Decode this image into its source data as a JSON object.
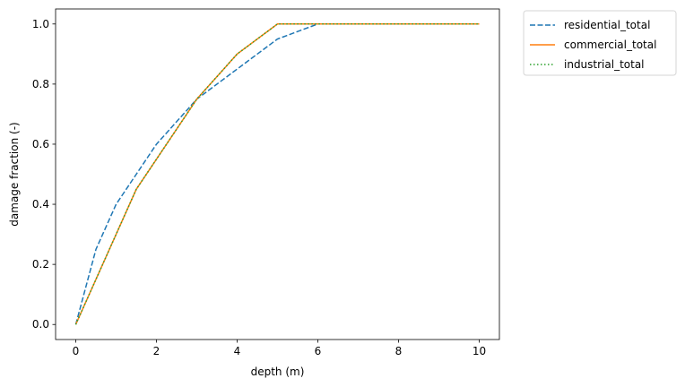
{
  "chart_data": {
    "type": "line",
    "title": "",
    "xlabel": "depth (m)",
    "ylabel": "damage fraction (-)",
    "xlim": [
      -0.5,
      10.5
    ],
    "ylim": [
      -0.05,
      1.05
    ],
    "xticks": [
      0,
      2,
      4,
      6,
      8,
      10
    ],
    "yticks": [
      0.0,
      0.2,
      0.4,
      0.6,
      0.8,
      1.0
    ],
    "xtick_labels": [
      "0",
      "2",
      "4",
      "6",
      "8",
      "10"
    ],
    "ytick_labels": [
      "0.0",
      "0.2",
      "0.4",
      "0.6",
      "0.8",
      "1.0"
    ],
    "grid": false,
    "legend_position": "outside upper right",
    "series": [
      {
        "name": "residential_total",
        "color": "#1f77b4",
        "linestyle": "dashed",
        "x": [
          0,
          0.5,
          1,
          1.5,
          2,
          3,
          4,
          5,
          6,
          7,
          8,
          9,
          10
        ],
        "y": [
          0,
          0.25,
          0.4,
          0.5,
          0.6,
          0.75,
          0.85,
          0.95,
          1.0,
          1.0,
          1.0,
          1.0,
          1.0
        ]
      },
      {
        "name": "commercial_total",
        "color": "#ff7f0e",
        "linestyle": "solid",
        "x": [
          0,
          1.5,
          3,
          4,
          5,
          6,
          7,
          8,
          9,
          10
        ],
        "y": [
          0,
          0.45,
          0.75,
          0.9,
          1.0,
          1.0,
          1.0,
          1.0,
          1.0,
          1.0
        ]
      },
      {
        "name": "industrial_total",
        "color": "#2ca02c",
        "linestyle": "dotted",
        "x": [
          0,
          1.5,
          3,
          4,
          5,
          6,
          7,
          8,
          9,
          10
        ],
        "y": [
          0,
          0.45,
          0.75,
          0.9,
          1.0,
          1.0,
          1.0,
          1.0,
          1.0,
          1.0
        ]
      }
    ]
  }
}
